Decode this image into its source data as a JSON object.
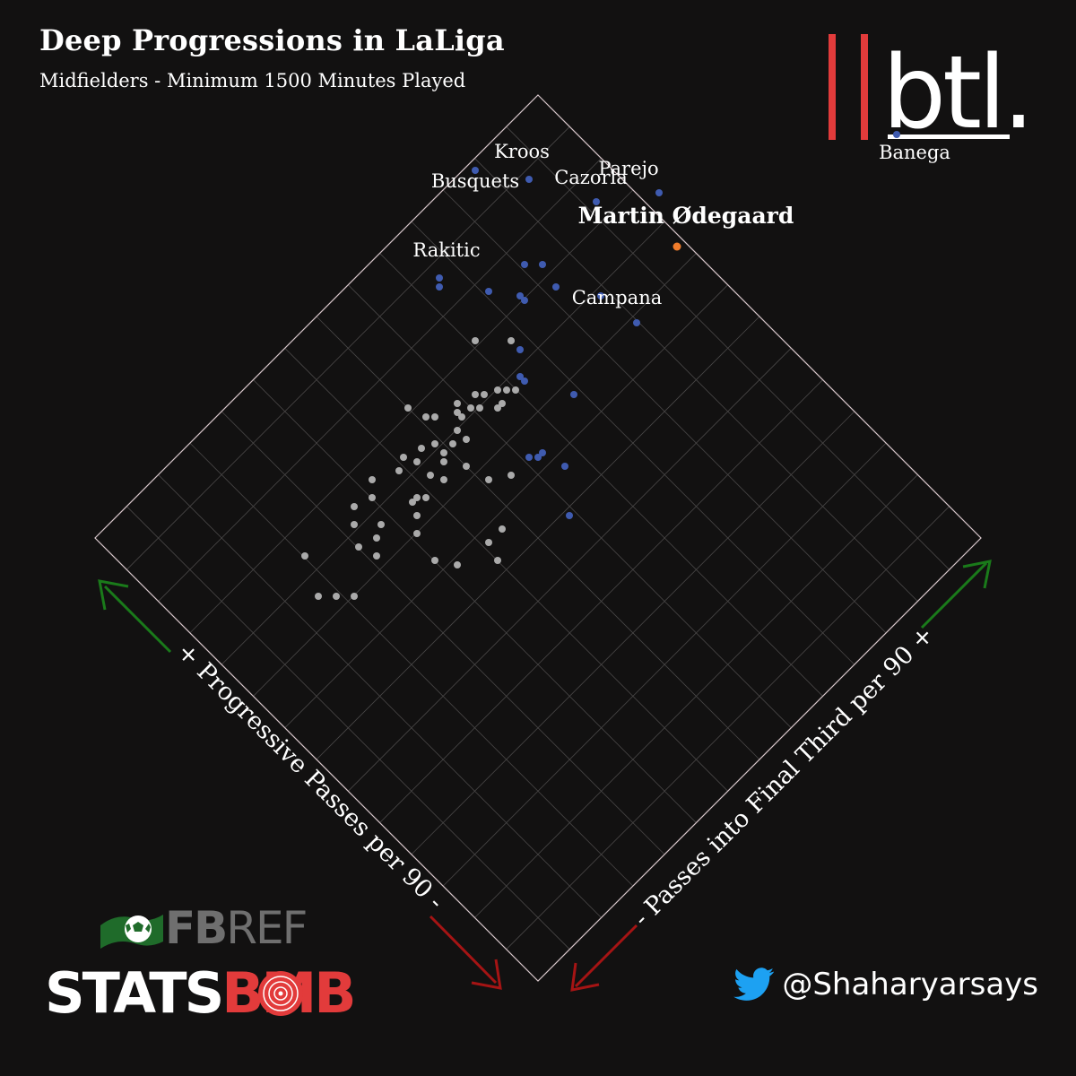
{
  "header": {
    "title": "Deep Progressions in LaLiga",
    "subtitle": "Midfielders - Minimum 1500 Minutes Played"
  },
  "branding": {
    "btl_logo_text": "btl.",
    "fbref_text_fb": "FB",
    "fbref_text_ref": "REF",
    "statsbomb_text_stats": "STATS",
    "statsbomb_text_bomb": "BMB",
    "twitter_handle": "@Shaharyarsays",
    "icons": [
      "twitter-bird-icon",
      "fbref-flag-icon",
      "statsbomb-target-icon"
    ]
  },
  "colors": {
    "background": "#121111",
    "grid": "#4a4848",
    "border": "#d9c8cc",
    "point_default": "#aaaaaa",
    "point_top": "#3f5bb0",
    "point_highlight": "#f07c2b",
    "arrow_up": "#1a7a1a",
    "arrow_down": "#a51414",
    "brand_red": "#e23b3b"
  },
  "chart_data": {
    "type": "scatter",
    "orientation": "rotated-45",
    "xlabel": "+ Progressive Passes per 90 -",
    "ylabel": "- Passes into Final Third per 90 +",
    "grid": true,
    "points": [
      {
        "x": 8.5,
        "y": 0.5,
        "name": "Banega",
        "group": "top"
      },
      {
        "x": 5.2,
        "y": 2.5,
        "name": "Parejo",
        "group": "top"
      },
      {
        "x": 3.9,
        "y": 4.1,
        "name": "Kroos",
        "group": "top"
      },
      {
        "x": 3.4,
        "y": 4.8,
        "name": "Busquets",
        "group": "top"
      },
      {
        "x": 4.4,
        "y": 3.1,
        "name": "Cazorla",
        "group": "top"
      },
      {
        "x": 4.8,
        "y": 1.7,
        "name": "Martin Ødegaard",
        "group": "highlight"
      },
      {
        "x": 3.1,
        "y": 3.0,
        "name": "",
        "group": "top"
      },
      {
        "x": 3.4,
        "y": 2.0,
        "name": "",
        "group": "top"
      },
      {
        "x": 2.9,
        "y": 3.2,
        "name": "",
        "group": "top"
      },
      {
        "x": 3.0,
        "y": 2.6,
        "name": "",
        "group": "top"
      },
      {
        "x": 3.5,
        "y": 1.3,
        "name": "Campana",
        "group": "top"
      },
      {
        "x": 2.5,
        "y": 2.8,
        "name": "",
        "group": "top"
      },
      {
        "x": 2.5,
        "y": 2.9,
        "name": "",
        "group": "top"
      },
      {
        "x": 2.2,
        "y": 3.3,
        "name": "",
        "group": "top"
      },
      {
        "x": 1.8,
        "y": 4.0,
        "name": "Rakitic",
        "group": "top"
      },
      {
        "x": 1.7,
        "y": 3.9,
        "name": "",
        "group": "top"
      },
      {
        "x": 1.9,
        "y": 2.3,
        "name": "",
        "group": "top"
      },
      {
        "x": 2.0,
        "y": 1.2,
        "name": "",
        "group": "top"
      },
      {
        "x": 1.6,
        "y": 1.9,
        "name": "",
        "group": "top"
      },
      {
        "x": 1.6,
        "y": 2.0,
        "name": "",
        "group": "top"
      },
      {
        "x": 1.1,
        "y": 0.5,
        "name": "",
        "group": "top"
      },
      {
        "x": 1.0,
        "y": 0.9,
        "name": "",
        "group": "top"
      },
      {
        "x": 0.9,
        "y": 0.9,
        "name": "",
        "group": "top"
      },
      {
        "x": 0.6,
        "y": -0.1,
        "name": "",
        "group": "top"
      },
      {
        "x": 0.8,
        "y": 1.0,
        "name": "",
        "group": "top"
      },
      {
        "x": 1.9,
        "y": 2.5,
        "name": "",
        "group": "default"
      },
      {
        "x": 1.5,
        "y": 2.9,
        "name": "",
        "group": "default"
      },
      {
        "x": 1.4,
        "y": 1.9,
        "name": "",
        "group": "default"
      },
      {
        "x": 1.3,
        "y": 2.0,
        "name": "",
        "group": "default"
      },
      {
        "x": 1.2,
        "y": 2.1,
        "name": "",
        "group": "default"
      },
      {
        "x": 1.1,
        "y": 1.9,
        "name": "",
        "group": "default"
      },
      {
        "x": 1.0,
        "y": 1.9,
        "name": "",
        "group": "default"
      },
      {
        "x": 1.0,
        "y": 2.2,
        "name": "",
        "group": "default"
      },
      {
        "x": 0.9,
        "y": 2.3,
        "name": "",
        "group": "default"
      },
      {
        "x": 0.8,
        "y": 2.1,
        "name": "",
        "group": "default"
      },
      {
        "x": 0.7,
        "y": 2.2,
        "name": "",
        "group": "default"
      },
      {
        "x": 0.6,
        "y": 2.4,
        "name": "",
        "group": "default"
      },
      {
        "x": 0.5,
        "y": 2.2,
        "name": "",
        "group": "default"
      },
      {
        "x": 0.5,
        "y": 2.3,
        "name": "",
        "group": "default"
      },
      {
        "x": 0.3,
        "y": 2.1,
        "name": "",
        "group": "default"
      },
      {
        "x": 0.2,
        "y": 2.5,
        "name": "",
        "group": "default"
      },
      {
        "x": 0.1,
        "y": 2.6,
        "name": "",
        "group": "default"
      },
      {
        "x": 0.0,
        "y": 2.9,
        "name": "",
        "group": "default"
      },
      {
        "x": 0.4,
        "y": 1.0,
        "name": "",
        "group": "default"
      },
      {
        "x": 0.1,
        "y": 1.2,
        "name": "",
        "group": "default"
      },
      {
        "x": 0.0,
        "y": 1.6,
        "name": "",
        "group": "default"
      },
      {
        "x": 0.3,
        "y": 1.9,
        "name": "",
        "group": "default"
      },
      {
        "x": 0.1,
        "y": 2.0,
        "name": "",
        "group": "default"
      },
      {
        "x": -0.1,
        "y": 2.0,
        "name": "",
        "group": "default"
      },
      {
        "x": -0.1,
        "y": 2.2,
        "name": "",
        "group": "default"
      },
      {
        "x": -0.2,
        "y": 1.9,
        "name": "",
        "group": "default"
      },
      {
        "x": -0.3,
        "y": 2.3,
        "name": "",
        "group": "default"
      },
      {
        "x": -0.5,
        "y": 2.2,
        "name": "",
        "group": "default"
      },
      {
        "x": -0.6,
        "y": 2.4,
        "name": "",
        "group": "default"
      },
      {
        "x": -0.8,
        "y": 2.3,
        "name": "",
        "group": "default"
      },
      {
        "x": -0.5,
        "y": 1.9,
        "name": "",
        "group": "default"
      },
      {
        "x": -0.4,
        "y": 1.7,
        "name": "",
        "group": "default"
      },
      {
        "x": -0.8,
        "y": 1.7,
        "name": "",
        "group": "default"
      },
      {
        "x": -0.9,
        "y": 1.8,
        "name": "",
        "group": "default"
      },
      {
        "x": -1.0,
        "y": 1.8,
        "name": "",
        "group": "default"
      },
      {
        "x": -1.1,
        "y": 1.6,
        "name": "",
        "group": "default"
      },
      {
        "x": -0.3,
        "y": 0.5,
        "name": "",
        "group": "default"
      },
      {
        "x": -0.7,
        "y": 0.2,
        "name": "",
        "group": "default"
      },
      {
        "x": -0.6,
        "y": 0.5,
        "name": "",
        "group": "default"
      },
      {
        "x": -1.2,
        "y": 0.6,
        "name": "",
        "group": "default"
      },
      {
        "x": -1.4,
        "y": 0.9,
        "name": "",
        "group": "default"
      },
      {
        "x": -1.3,
        "y": 1.4,
        "name": "",
        "group": "default"
      },
      {
        "x": -1.2,
        "y": 2.5,
        "name": "",
        "group": "default"
      },
      {
        "x": -1.4,
        "y": 2.3,
        "name": "",
        "group": "default"
      },
      {
        "x": -1.7,
        "y": 2.4,
        "name": "",
        "group": "default"
      },
      {
        "x": -1.9,
        "y": 2.2,
        "name": "",
        "group": "default"
      },
      {
        "x": -1.6,
        "y": 1.9,
        "name": "",
        "group": "default"
      },
      {
        "x": -1.8,
        "y": 1.8,
        "name": "",
        "group": "default"
      },
      {
        "x": -2.0,
        "y": 1.6,
        "name": "",
        "group": "default"
      },
      {
        "x": -2.1,
        "y": 1.9,
        "name": "",
        "group": "default"
      },
      {
        "x": -2.8,
        "y": 2.4,
        "name": "",
        "group": "default"
      },
      {
        "x": -2.7,
        "y": 1.4,
        "name": "",
        "group": "default"
      },
      {
        "x": -2.9,
        "y": 1.6,
        "name": "",
        "group": "default"
      },
      {
        "x": -3.1,
        "y": 1.8,
        "name": "",
        "group": "default"
      }
    ]
  }
}
